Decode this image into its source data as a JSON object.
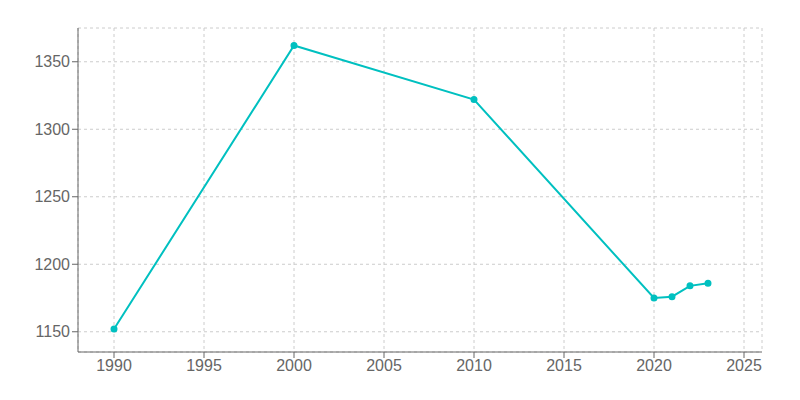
{
  "chart_data": {
    "type": "line",
    "x": [
      1990,
      2000,
      2010,
      2020,
      2021,
      2022,
      2023
    ],
    "values": [
      1152,
      1362,
      1322,
      1175,
      1176,
      1184,
      1186
    ],
    "color": "#00c0c0",
    "marker": "circle",
    "xlim": [
      1988,
      2026
    ],
    "ylim": [
      1135,
      1375
    ],
    "xticks": [
      1990,
      1995,
      2000,
      2005,
      2010,
      2015,
      2020,
      2025
    ],
    "yticks": [
      1150,
      1200,
      1250,
      1300,
      1350
    ],
    "grid": true
  }
}
